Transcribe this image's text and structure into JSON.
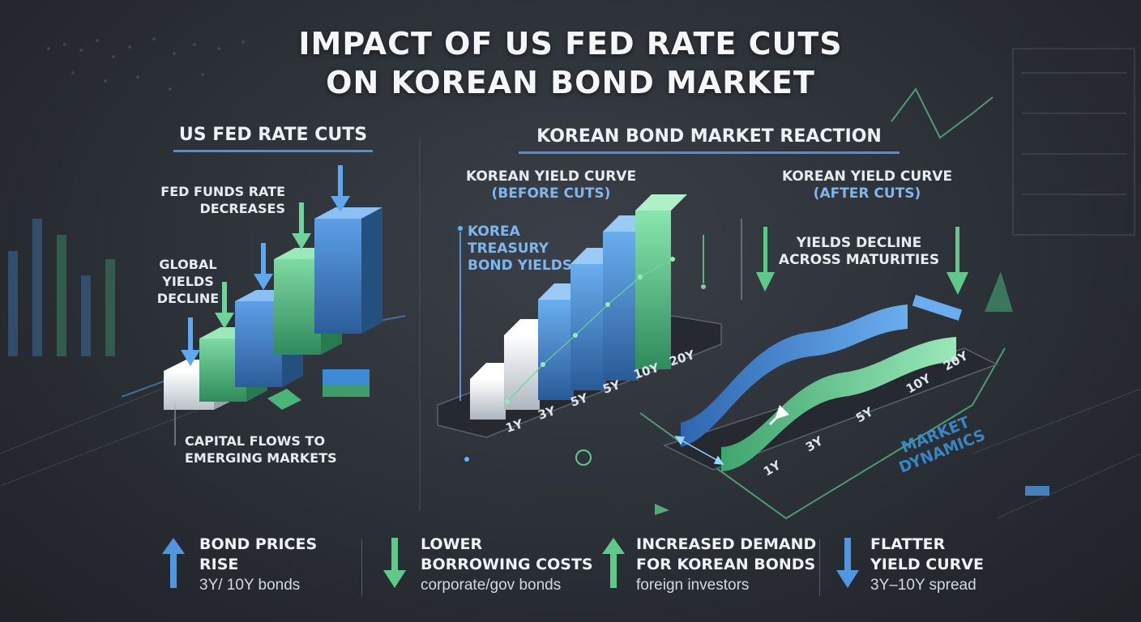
{
  "title": {
    "line1": "IMPACT OF US FED RATE CUTS",
    "line2": "ON KOREAN BOND MARKET"
  },
  "left_section": {
    "heading": "US FED RATE CUTS",
    "labels": {
      "fed_funds": [
        "FED FUNDS RATE",
        "DECREASES"
      ],
      "global_yields": [
        "GLOBAL",
        "YIELDS",
        "DECLINE"
      ],
      "capital_flows": [
        "CAPITAL FLOWS TO",
        "EMERGING MARKETS"
      ]
    }
  },
  "right_section": {
    "heading": "KOREAN BOND MARKET REACTION",
    "before": {
      "title": "KOREAN YIELD CURVE",
      "subtitle": "(BEFORE CUTS)",
      "side_label": [
        "KOREA",
        "TREASURY",
        "BOND YIELDS"
      ],
      "maturities": [
        "1Y",
        "3Y",
        "5Y",
        "5Y",
        "10Y",
        "20Y"
      ]
    },
    "after": {
      "title": "KOREAN YIELD CURVE",
      "subtitle": "(AFTER CUTS)",
      "note": [
        "YIELDS DECLINE",
        "ACROSS MATURITIES"
      ],
      "maturities": [
        "1Y",
        "3Y",
        "5Y",
        "10Y",
        "20Y"
      ],
      "badge": [
        "MARKET",
        "DYNAMICS"
      ]
    }
  },
  "footer": [
    {
      "direction": "up",
      "color": "#4f97e0",
      "title": [
        "BOND PRICES",
        "RISE"
      ],
      "sub": "3Y/ 10Y bonds"
    },
    {
      "direction": "down",
      "color": "#5fc98a",
      "title": [
        "LOWER",
        "BORROWING COSTS"
      ],
      "sub": "corporate/gov bonds"
    },
    {
      "direction": "up",
      "color": "#5fc98a",
      "title": [
        "INCREASED DEMAND",
        "FOR KOREAN BONDS"
      ],
      "sub": "foreign investors"
    },
    {
      "direction": "down",
      "color": "#4f97e0",
      "title": [
        "FLATTER",
        "YIELD CURVE"
      ],
      "sub": "3Y–10Y spread"
    }
  ]
}
